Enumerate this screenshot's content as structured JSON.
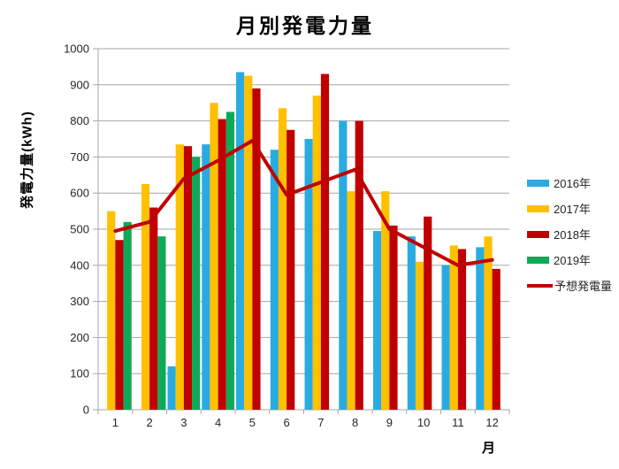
{
  "chart_data": {
    "type": "bar",
    "title": "月別発電力量",
    "ylabel": "発電力量(kWh)",
    "xlabel": "月",
    "categories": [
      "1",
      "2",
      "3",
      "4",
      "5",
      "6",
      "7",
      "8",
      "9",
      "10",
      "11",
      "12"
    ],
    "ylim": [
      0,
      1000
    ],
    "ytick_step": 100,
    "grid": true,
    "legend_position": "right",
    "series": [
      {
        "name": "2016年",
        "type": "bar",
        "color": "#29ABE2",
        "values": [
          null,
          null,
          120,
          735,
          935,
          720,
          750,
          800,
          495,
          480,
          400,
          450
        ]
      },
      {
        "name": "2017年",
        "type": "bar",
        "color": "#FFC000",
        "values": [
          550,
          625,
          735,
          850,
          925,
          835,
          870,
          605,
          605,
          410,
          455,
          480
        ]
      },
      {
        "name": "2018年",
        "type": "bar",
        "color": "#C00000",
        "values": [
          470,
          560,
          730,
          805,
          890,
          775,
          930,
          800,
          510,
          535,
          445,
          390
        ]
      },
      {
        "name": "2019年",
        "type": "bar",
        "color": "#0FA958",
        "values": [
          520,
          480,
          700,
          825,
          null,
          null,
          null,
          null,
          null,
          null,
          null,
          null
        ]
      },
      {
        "name": "予想発電量",
        "type": "line",
        "color": "#C00000",
        "values": [
          495,
          520,
          640,
          690,
          745,
          595,
          630,
          665,
          500,
          450,
          400,
          415
        ]
      }
    ],
    "colors": {
      "grid": "#A6A6A6",
      "axis": "#A6A6A6",
      "tick_label": "#262626"
    }
  }
}
